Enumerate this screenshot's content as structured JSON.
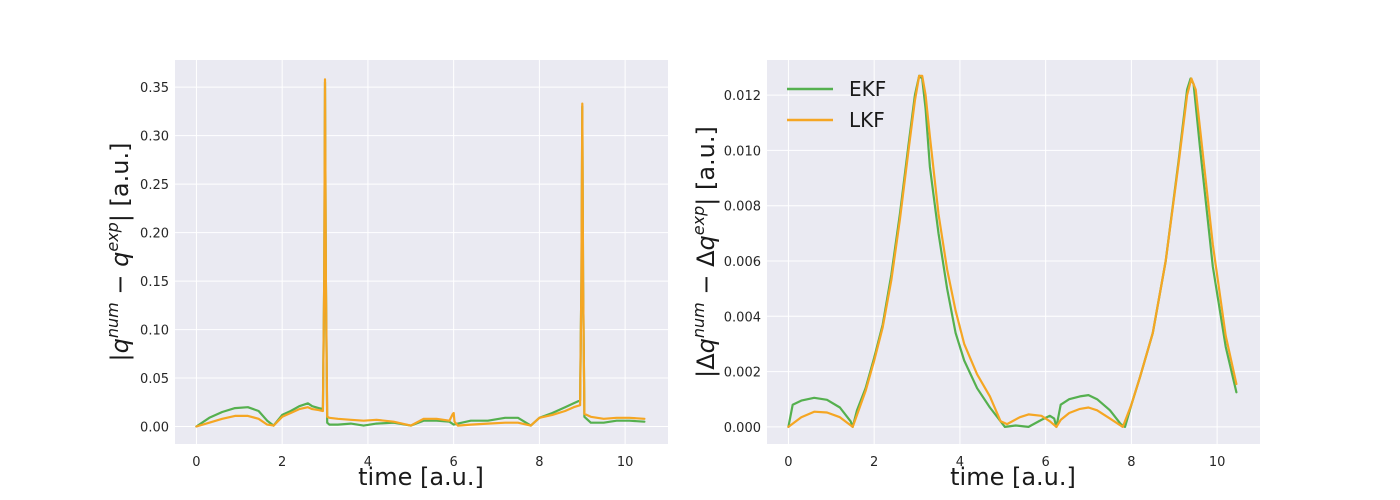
{
  "chart_data": [
    {
      "type": "line",
      "xlabel": "time [a.u.]",
      "ylabel": {
        "prefix": "|",
        "sym1": "q",
        "sup1": "num",
        "op": " − ",
        "sym2": "q",
        "sup2": "exp",
        "suffix": "| [a.u.]"
      },
      "xlim": [
        -0.5,
        11.0
      ],
      "ylim": [
        -0.018,
        0.378
      ],
      "xticks": [
        0,
        2,
        4,
        6,
        8,
        10
      ],
      "yticks": [
        0.0,
        0.05,
        0.1,
        0.15,
        0.2,
        0.25,
        0.3,
        0.35
      ],
      "ytick_labels": [
        "0.00",
        "0.05",
        "0.10",
        "0.15",
        "0.20",
        "0.25",
        "0.30",
        "0.35"
      ],
      "grid": true,
      "series": [
        {
          "name": "EKF",
          "color": "#55b04f",
          "x": [
            0,
            0.3,
            0.6,
            0.9,
            1.2,
            1.45,
            1.65,
            1.8,
            2.0,
            2.2,
            2.4,
            2.6,
            2.7,
            2.85,
            2.95,
            2.98,
            3.0,
            3.02,
            3.05,
            3.1,
            3.3,
            3.6,
            3.9,
            4.2,
            4.6,
            5.0,
            5.3,
            5.6,
            5.9,
            6.0,
            6.1,
            6.4,
            6.8,
            7.2,
            7.5,
            7.8,
            8.0,
            8.3,
            8.6,
            8.8,
            8.95,
            8.98,
            9.0,
            9.02,
            9.05,
            9.2,
            9.5,
            9.8,
            10.1,
            10.45
          ],
          "y": [
            0.0,
            0.009,
            0.015,
            0.019,
            0.02,
            0.016,
            0.006,
            0.001,
            0.012,
            0.016,
            0.021,
            0.024,
            0.021,
            0.019,
            0.018,
            0.15,
            0.355,
            0.15,
            0.004,
            0.002,
            0.002,
            0.003,
            0.001,
            0.003,
            0.004,
            0.001,
            0.006,
            0.006,
            0.005,
            0.002,
            0.003,
            0.006,
            0.006,
            0.009,
            0.009,
            0.001,
            0.009,
            0.014,
            0.02,
            0.024,
            0.027,
            0.15,
            0.33,
            0.15,
            0.01,
            0.004,
            0.004,
            0.006,
            0.006,
            0.005
          ]
        },
        {
          "name": "LKF",
          "color": "#f5a623",
          "x": [
            0,
            0.3,
            0.6,
            0.9,
            1.2,
            1.45,
            1.65,
            1.8,
            2.0,
            2.2,
            2.4,
            2.6,
            2.7,
            2.85,
            2.95,
            2.98,
            3.0,
            3.02,
            3.05,
            3.1,
            3.3,
            3.6,
            3.9,
            4.2,
            4.6,
            5.0,
            5.3,
            5.6,
            5.9,
            5.98,
            6.0,
            6.02,
            6.1,
            6.4,
            6.8,
            7.2,
            7.5,
            7.8,
            8.0,
            8.3,
            8.6,
            8.8,
            8.95,
            8.98,
            9.0,
            9.02,
            9.05,
            9.2,
            9.5,
            9.8,
            10.1,
            10.45
          ],
          "y": [
            0.0,
            0.004,
            0.008,
            0.011,
            0.011,
            0.008,
            0.002,
            0.001,
            0.01,
            0.014,
            0.018,
            0.02,
            0.018,
            0.017,
            0.016,
            0.15,
            0.358,
            0.15,
            0.01,
            0.009,
            0.008,
            0.007,
            0.006,
            0.007,
            0.005,
            0.001,
            0.008,
            0.008,
            0.006,
            0.013,
            0.014,
            0.005,
            0.001,
            0.002,
            0.003,
            0.004,
            0.004,
            0.001,
            0.009,
            0.012,
            0.016,
            0.02,
            0.022,
            0.15,
            0.333,
            0.15,
            0.013,
            0.01,
            0.008,
            0.009,
            0.009,
            0.008
          ]
        }
      ]
    },
    {
      "type": "line",
      "xlabel": "time [a.u.]",
      "ylabel": {
        "prefix": "|Δ",
        "sym1": "q",
        "sup1": "num",
        "op": " − Δ",
        "sym2": "q",
        "sup2": "exp",
        "suffix": "| [a.u.]"
      },
      "xlim": [
        -0.5,
        11.0
      ],
      "ylim": [
        -0.00062,
        0.01327
      ],
      "xticks": [
        0,
        2,
        4,
        6,
        8,
        10
      ],
      "yticks": [
        0.0,
        0.002,
        0.004,
        0.006,
        0.008,
        0.01,
        0.012
      ],
      "ytick_labels": [
        "0.000",
        "0.002",
        "0.004",
        "0.006",
        "0.008",
        "0.010",
        "0.012"
      ],
      "grid": true,
      "legend_placement": "upper-left",
      "series": [
        {
          "name": "EKF",
          "color": "#55b04f",
          "x": [
            0,
            0.1,
            0.3,
            0.6,
            0.9,
            1.2,
            1.45,
            1.5,
            1.6,
            1.8,
            2.0,
            2.2,
            2.4,
            2.6,
            2.8,
            2.95,
            3.05,
            3.12,
            3.2,
            3.3,
            3.5,
            3.7,
            3.9,
            4.1,
            4.4,
            4.7,
            4.9,
            5.05,
            5.3,
            5.6,
            5.9,
            6.1,
            6.2,
            6.25,
            6.35,
            6.55,
            6.8,
            7.0,
            7.2,
            7.5,
            7.75,
            7.85,
            8.0,
            8.2,
            8.5,
            8.8,
            9.1,
            9.3,
            9.38,
            9.45,
            9.6,
            9.9,
            10.2,
            10.45
          ],
          "y": [
            0.0,
            0.0008,
            0.00095,
            0.00105,
            0.00098,
            0.0007,
            0.0002,
            0.0,
            0.0006,
            0.0014,
            0.0025,
            0.0037,
            0.0055,
            0.0077,
            0.0102,
            0.012,
            0.0127,
            0.0126,
            0.0115,
            0.0094,
            0.007,
            0.005,
            0.0034,
            0.0024,
            0.0014,
            0.0007,
            0.0003,
            0.0,
            5e-05,
            0.0,
            0.00025,
            0.0004,
            0.0003,
            0.0,
            0.0008,
            0.001,
            0.0011,
            0.00115,
            0.001,
            0.0006,
            0.0001,
            0.0,
            0.0008,
            0.0018,
            0.0034,
            0.006,
            0.0096,
            0.0122,
            0.0126,
            0.0124,
            0.0101,
            0.0058,
            0.0029,
            0.00125
          ]
        },
        {
          "name": "LKF",
          "color": "#f5a623",
          "x": [
            0,
            0.3,
            0.6,
            0.9,
            1.2,
            1.5,
            1.8,
            2.0,
            2.2,
            2.4,
            2.6,
            2.8,
            2.95,
            3.05,
            3.12,
            3.2,
            3.3,
            3.5,
            3.7,
            3.9,
            4.1,
            4.4,
            4.7,
            4.95,
            5.1,
            5.4,
            5.6,
            5.9,
            6.1,
            6.25,
            6.35,
            6.55,
            6.8,
            7.0,
            7.2,
            7.5,
            7.8,
            8.0,
            8.2,
            8.5,
            8.8,
            9.1,
            9.3,
            9.4,
            9.5,
            9.6,
            9.9,
            10.2,
            10.45
          ],
          "y": [
            0.0,
            0.00035,
            0.00055,
            0.00052,
            0.00035,
            0.0,
            0.0013,
            0.0024,
            0.0036,
            0.0053,
            0.0075,
            0.01,
            0.0118,
            0.0127,
            0.0127,
            0.012,
            0.0105,
            0.0077,
            0.0057,
            0.0042,
            0.003,
            0.0019,
            0.0011,
            0.0002,
            0.0001,
            0.00035,
            0.00045,
            0.0004,
            0.0002,
            0.0,
            0.00025,
            0.0005,
            0.00065,
            0.0007,
            0.0006,
            0.0003,
            0.0,
            0.0008,
            0.0018,
            0.0034,
            0.006,
            0.0095,
            0.012,
            0.0126,
            0.0122,
            0.0108,
            0.0066,
            0.0033,
            0.00155
          ]
        }
      ]
    }
  ]
}
